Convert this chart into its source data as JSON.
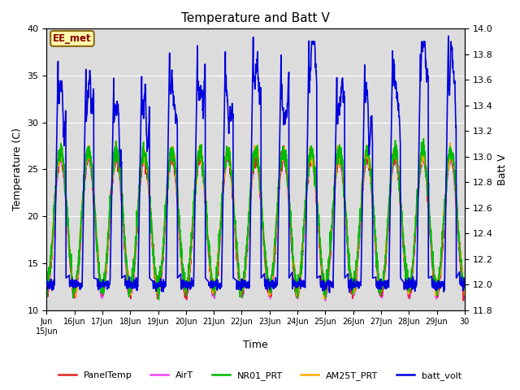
{
  "title": "Temperature and Batt V",
  "xlabel": "Time",
  "ylabel_left": "Temperature (C)",
  "ylabel_right": "Batt V",
  "annotation_text": "EE_met",
  "annotation_color": "#8B0000",
  "annotation_bg": "#FFFAAA",
  "annotation_border": "#8B6914",
  "ylim_left": [
    10,
    40
  ],
  "ylim_right": [
    11.8,
    14.0
  ],
  "bg_color": "#DCDCDC",
  "fig_bg": "#FFFFFF",
  "legend_entries": [
    {
      "label": "PanelTemp",
      "color": "#DD2222",
      "lw": 1.2
    },
    {
      "label": "AirT",
      "color": "#EE44EE",
      "lw": 1.2
    },
    {
      "label": "NR01_PRT",
      "color": "#00BB00",
      "lw": 1.2
    },
    {
      "label": "AM25T_PRT",
      "color": "#FFAA00",
      "lw": 1.2
    },
    {
      "label": "batt_volt",
      "color": "#0000DD",
      "lw": 1.2
    }
  ],
  "n_days": 15,
  "pts_per_day": 144,
  "seed": 7
}
